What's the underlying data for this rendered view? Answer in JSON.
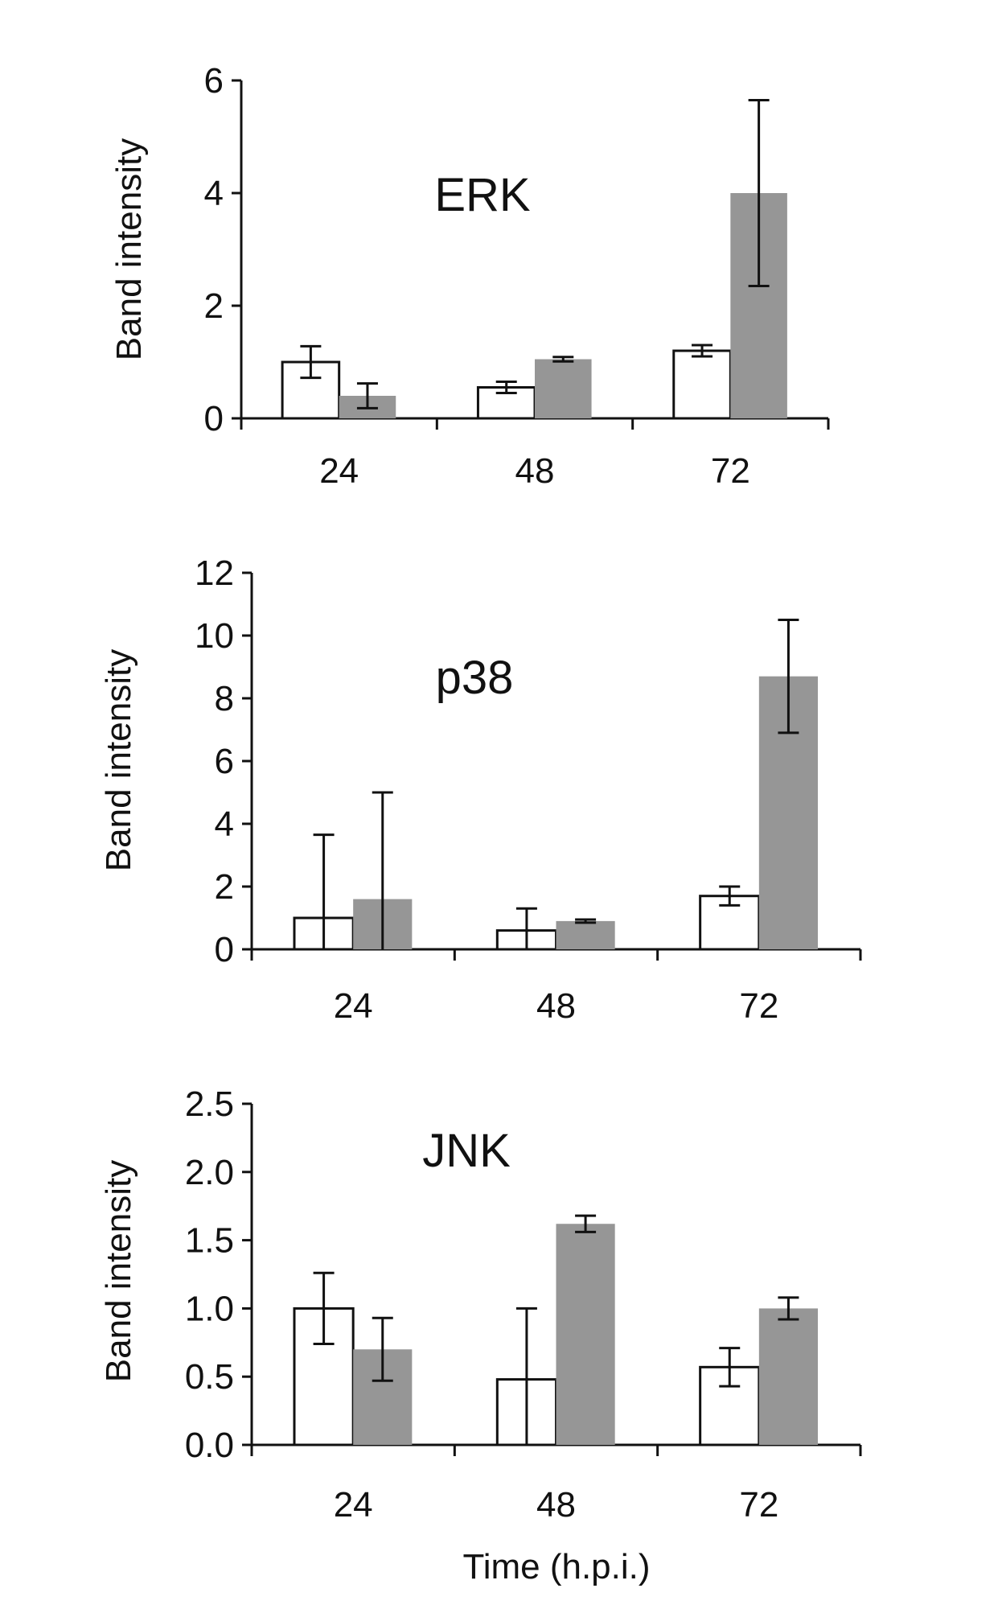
{
  "figure": {
    "xlabel": "Time (h.p.i.)"
  },
  "chart_data": [
    {
      "type": "bar",
      "title": "ERK",
      "ylabel": "Band intensity",
      "categories": [
        "24",
        "48",
        "72"
      ],
      "ylim": [
        0,
        6
      ],
      "yticks": [
        "0",
        "2",
        "4",
        "6"
      ],
      "colors": [
        "#ffffff",
        "#969696"
      ],
      "series": [
        {
          "values": [
            1.0,
            0.55,
            1.2
          ],
          "errors": [
            0.28,
            0.1,
            0.1
          ]
        },
        {
          "values": [
            0.4,
            1.05,
            4.0
          ],
          "errors": [
            0.22,
            0.04,
            1.65
          ]
        }
      ]
    },
    {
      "type": "bar",
      "title": "p38",
      "ylabel": "Band intensity",
      "categories": [
        "24",
        "48",
        "72"
      ],
      "ylim": [
        0,
        12
      ],
      "yticks": [
        "0",
        "2",
        "4",
        "6",
        "8",
        "10",
        "12"
      ],
      "colors": [
        "#ffffff",
        "#969696"
      ],
      "series": [
        {
          "values": [
            1.0,
            0.6,
            1.7
          ],
          "errors": [
            2.65,
            0.7,
            0.3
          ]
        },
        {
          "values": [
            1.6,
            0.9,
            8.7
          ],
          "errors": [
            3.4,
            0.05,
            1.8
          ]
        }
      ]
    },
    {
      "type": "bar",
      "title": "JNK",
      "ylabel": "Band intensity",
      "categories": [
        "24",
        "48",
        "72"
      ],
      "ylim": [
        0,
        2.5
      ],
      "yticks": [
        "0.0",
        "0.5",
        "1.0",
        "1.5",
        "2.0",
        "2.5"
      ],
      "colors": [
        "#ffffff",
        "#969696"
      ],
      "series": [
        {
          "values": [
            1.0,
            0.48,
            0.57
          ],
          "errors": [
            0.26,
            0.52,
            0.14
          ]
        },
        {
          "values": [
            0.7,
            1.62,
            1.0
          ],
          "errors": [
            0.23,
            0.06,
            0.08
          ]
        }
      ]
    }
  ]
}
